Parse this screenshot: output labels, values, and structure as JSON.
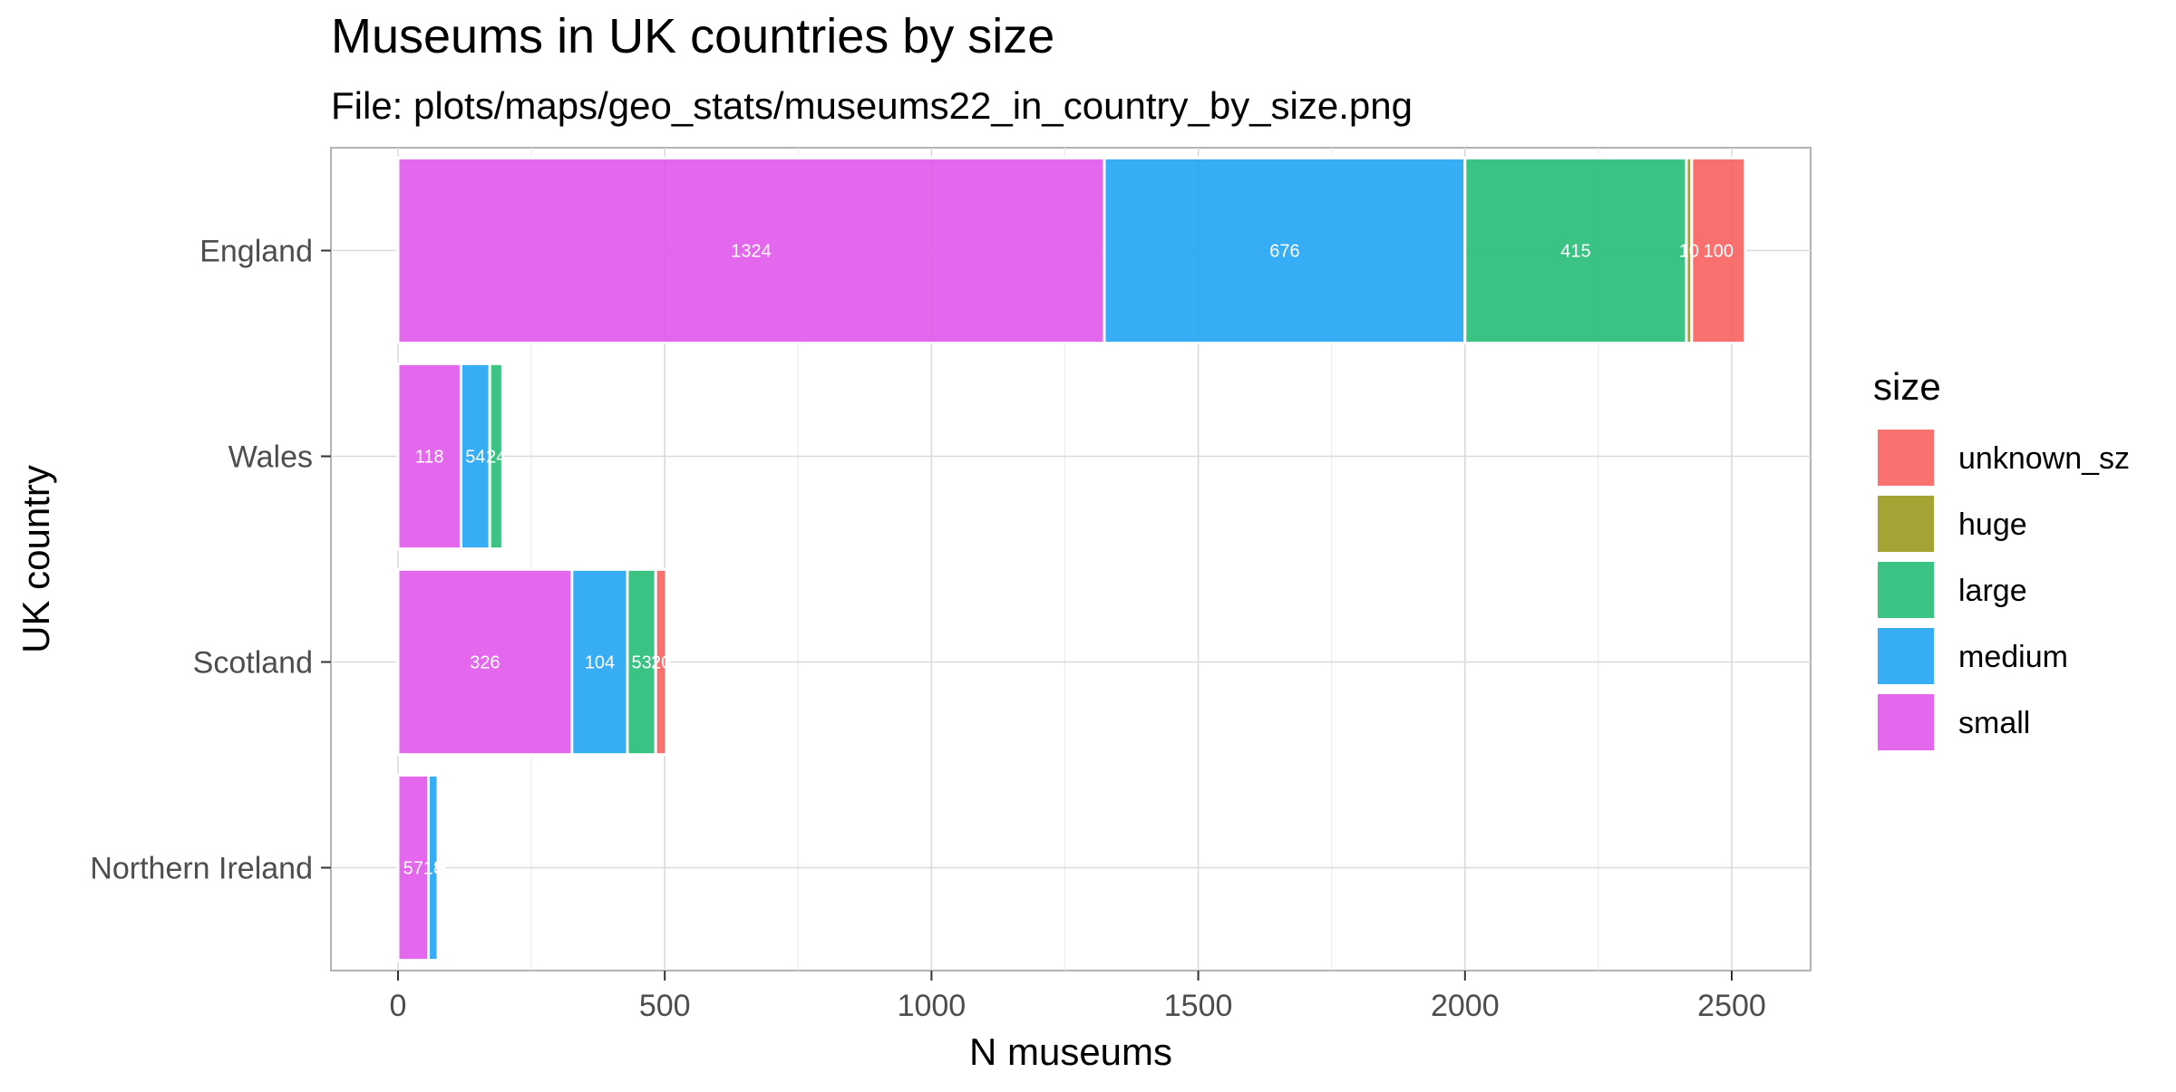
{
  "chart_data": {
    "type": "bar",
    "orientation": "horizontal",
    "stacked": true,
    "title": "Museums in UK countries by size",
    "subtitle": "File: plots/maps/geo_stats/museums22_in_country_by_size.png",
    "xlabel": "N museums",
    "ylabel": "UK country",
    "categories": [
      "England",
      "Wales",
      "Scotland",
      "Northern Ireland"
    ],
    "xlim": [
      -125,
      2650
    ],
    "xticks": [
      0,
      500,
      1000,
      1500,
      2000,
      2500
    ],
    "xtick_labels": [
      "0",
      "500",
      "1000",
      "1500",
      "2000",
      "2500"
    ],
    "grid": true,
    "legend_title": "size",
    "legend_position": "right",
    "series": [
      {
        "name": "small",
        "color": "#E058EB",
        "values": [
          1324,
          118,
          326,
          57
        ],
        "labels": [
          "1324",
          "118",
          "326",
          "57"
        ]
      },
      {
        "name": "medium",
        "color": "#20A4F3",
        "values": [
          676,
          54,
          104,
          18
        ],
        "labels": [
          "676",
          "54",
          "104",
          "18"
        ]
      },
      {
        "name": "large",
        "color": "#25BC75",
        "values": [
          415,
          24,
          53,
          5
        ],
        "labels": [
          "415",
          "24",
          "53",
          "5"
        ]
      },
      {
        "name": "huge",
        "color": "#999A1E",
        "values": [
          10,
          0,
          0,
          0
        ],
        "labels": [
          "10",
          "",
          "",
          ""
        ]
      },
      {
        "name": "unknown_sz",
        "color": "#F7625E",
        "values": [
          100,
          0,
          20,
          5
        ],
        "labels": [
          "100",
          "",
          "20",
          "5"
        ]
      }
    ],
    "legend_order": [
      "unknown_sz",
      "huge",
      "large",
      "medium",
      "small"
    ]
  }
}
